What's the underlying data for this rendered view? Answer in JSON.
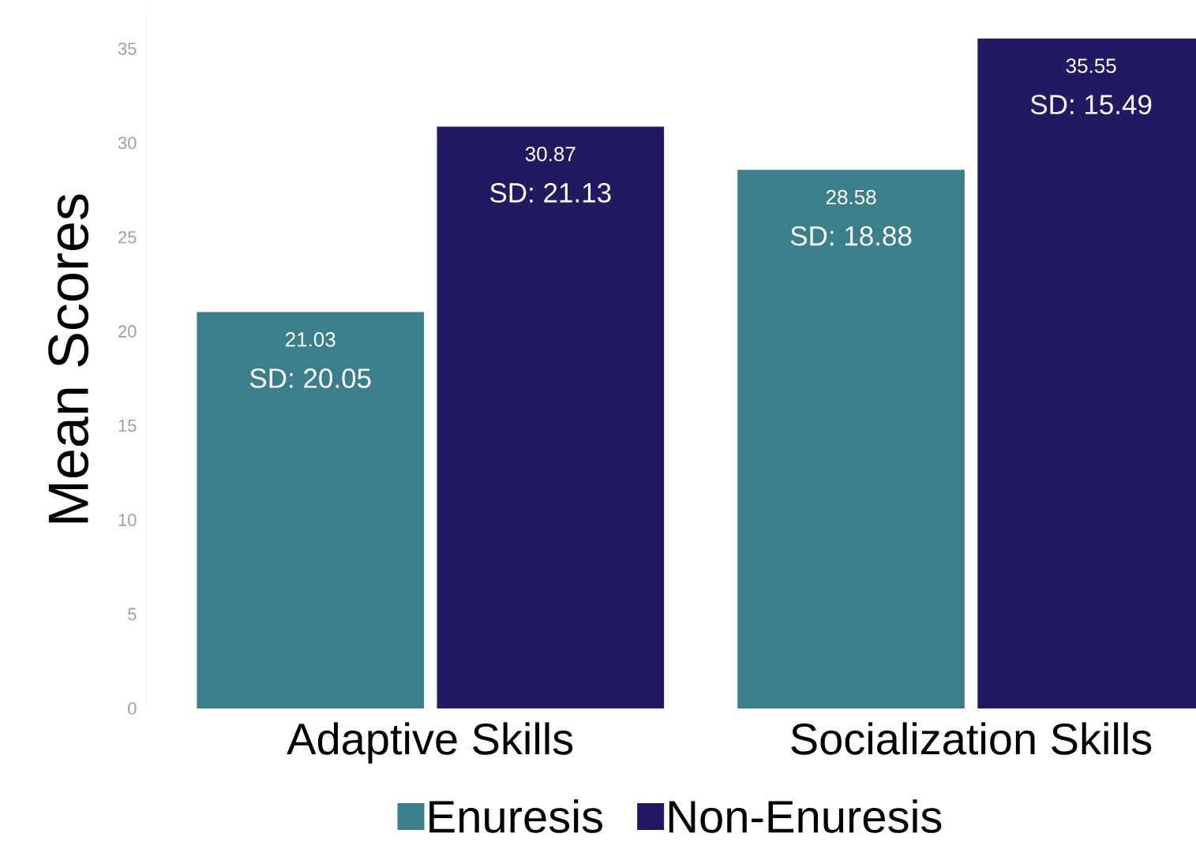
{
  "chart_data": {
    "type": "bar",
    "ylabel": "Mean Scores",
    "categories": [
      "Adaptive Skills",
      "Socialization Skills"
    ],
    "series": [
      {
        "name": "Enuresis",
        "color": "#3a7f8a",
        "values": [
          21.03,
          28.58
        ]
      },
      {
        "name": "Non-Enuresis",
        "color": "#221a60",
        "values": [
          30.87,
          35.55
        ]
      }
    ],
    "ylim": [
      0,
      37
    ],
    "yticks": [
      0,
      5,
      10,
      15,
      20,
      25,
      30,
      35
    ],
    "data_labels": true,
    "grid": false,
    "legend": "bottom",
    "annotations": [
      "SD: 20.05",
      "SD: 21.13",
      "SD: 18.88",
      "SD: 15.49"
    ]
  }
}
